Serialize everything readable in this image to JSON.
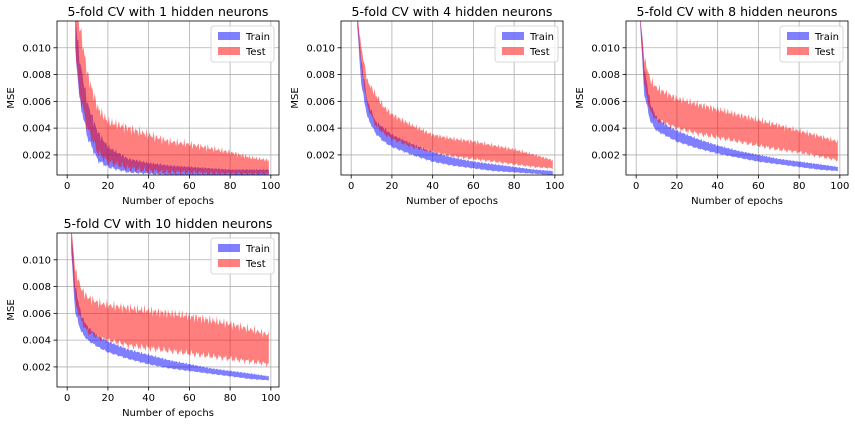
{
  "figure": {
    "background": "#ffffff",
    "train_color": "#0000ff",
    "test_color": "#ff0000",
    "band_opacity": 0.5
  },
  "chart_data": [
    {
      "type": "area",
      "title": "5-fold CV with 1 hidden neurons",
      "xlabel": "Number of epochs",
      "ylabel": "MSE",
      "xlim": [
        -5,
        104
      ],
      "ylim": [
        0.0005,
        0.012
      ],
      "xticks": [
        "0",
        "20",
        "40",
        "60",
        "80",
        "100"
      ],
      "yticks": [
        "0.002",
        "0.004",
        "0.006",
        "0.008",
        "0.010"
      ],
      "grid": true,
      "legend": "top-right",
      "legend_entries": [
        "Train",
        "Test"
      ],
      "series": [
        {
          "name": "Train",
          "x": [
            4,
            6,
            10,
            15,
            20,
            30,
            40,
            50,
            60,
            70,
            80,
            90,
            99
          ],
          "lower": [
            0.0099,
            0.0062,
            0.0033,
            0.0016,
            0.0011,
            0.0007,
            0.0006,
            0.0005,
            0.0005,
            0.0005,
            0.0005,
            0.0005,
            0.0005
          ],
          "upper": [
            0.0125,
            0.0092,
            0.0058,
            0.0037,
            0.0026,
            0.0017,
            0.0014,
            0.0012,
            0.0011,
            0.001,
            0.0009,
            0.0009,
            0.0009
          ]
        },
        {
          "name": "Test",
          "x": [
            4,
            6,
            10,
            15,
            20,
            30,
            40,
            50,
            60,
            70,
            80,
            90,
            99
          ],
          "lower": [
            0.01,
            0.0066,
            0.004,
            0.0022,
            0.0015,
            0.001,
            0.0008,
            0.0007,
            0.0007,
            0.0006,
            0.0006,
            0.0006,
            0.0006
          ],
          "upper": [
            0.0125,
            0.0118,
            0.008,
            0.0055,
            0.0045,
            0.004,
            0.0035,
            0.003,
            0.0028,
            0.0025,
            0.0022,
            0.0018,
            0.0016
          ]
        }
      ]
    },
    {
      "type": "area",
      "title": "5-fold CV with 4 hidden neurons",
      "xlabel": "Number of epochs",
      "ylabel": "MSE",
      "xlim": [
        -5,
        104
      ],
      "ylim": [
        0.0005,
        0.012
      ],
      "xticks": [
        "0",
        "20",
        "40",
        "60",
        "80",
        "100"
      ],
      "yticks": [
        "0.002",
        "0.004",
        "0.006",
        "0.008",
        "0.010"
      ],
      "grid": true,
      "legend": "top-right",
      "legend_entries": [
        "Train",
        "Test"
      ],
      "series": [
        {
          "name": "Train",
          "x": [
            3,
            5,
            8,
            12,
            16,
            20,
            30,
            40,
            50,
            60,
            70,
            80,
            90,
            99
          ],
          "lower": [
            0.0115,
            0.0072,
            0.0048,
            0.0036,
            0.003,
            0.0026,
            0.002,
            0.0015,
            0.0012,
            0.001,
            0.0008,
            0.0007,
            0.0006,
            0.0005
          ],
          "upper": [
            0.0125,
            0.009,
            0.006,
            0.0045,
            0.004,
            0.0035,
            0.0028,
            0.0022,
            0.0018,
            0.0015,
            0.0013,
            0.0011,
            0.0009,
            0.0008
          ]
        },
        {
          "name": "Test",
          "x": [
            3,
            5,
            8,
            12,
            16,
            20,
            30,
            40,
            50,
            60,
            70,
            80,
            90,
            99
          ],
          "lower": [
            0.0118,
            0.0085,
            0.0056,
            0.0042,
            0.0036,
            0.0032,
            0.0026,
            0.0022,
            0.0019,
            0.0017,
            0.0015,
            0.0013,
            0.0011,
            0.001
          ],
          "upper": [
            0.0125,
            0.01,
            0.0075,
            0.0065,
            0.0056,
            0.005,
            0.0042,
            0.0035,
            0.0032,
            0.003,
            0.0027,
            0.0024,
            0.002,
            0.0016
          ]
        }
      ]
    },
    {
      "type": "area",
      "title": "5-fold CV with 8 hidden neurons",
      "xlabel": "Number of epochs",
      "ylabel": "MSE",
      "xlim": [
        -5,
        104
      ],
      "ylim": [
        0.0005,
        0.012
      ],
      "xticks": [
        "0",
        "20",
        "40",
        "60",
        "80",
        "100"
      ],
      "yticks": [
        "0.002",
        "0.004",
        "0.006",
        "0.008",
        "0.010"
      ],
      "grid": true,
      "legend": "top-right",
      "legend_entries": [
        "Train",
        "Test"
      ],
      "series": [
        {
          "name": "Train",
          "x": [
            2,
            4,
            7,
            10,
            15,
            20,
            30,
            40,
            50,
            60,
            70,
            80,
            90,
            99
          ],
          "lower": [
            0.0115,
            0.0065,
            0.0045,
            0.0038,
            0.0034,
            0.003,
            0.0025,
            0.0021,
            0.0018,
            0.0015,
            0.0013,
            0.0011,
            0.0009,
            0.0008
          ],
          "upper": [
            0.0125,
            0.0085,
            0.0058,
            0.0048,
            0.0042,
            0.0038,
            0.0032,
            0.0027,
            0.0023,
            0.002,
            0.0017,
            0.0015,
            0.0013,
            0.0011
          ]
        },
        {
          "name": "Test",
          "x": [
            2,
            4,
            7,
            10,
            15,
            20,
            30,
            40,
            50,
            60,
            70,
            80,
            90,
            99
          ],
          "lower": [
            0.0118,
            0.0072,
            0.0052,
            0.0046,
            0.0043,
            0.004,
            0.0036,
            0.0033,
            0.003,
            0.0027,
            0.0024,
            0.0022,
            0.0019,
            0.0016
          ],
          "upper": [
            0.0125,
            0.0092,
            0.0076,
            0.007,
            0.0066,
            0.0062,
            0.0058,
            0.0054,
            0.005,
            0.0046,
            0.0042,
            0.0038,
            0.0034,
            0.003
          ]
        }
      ]
    },
    {
      "type": "area",
      "title": "5-fold CV with 10 hidden neurons",
      "xlabel": "Number of epochs",
      "ylabel": "MSE",
      "xlim": [
        -5,
        104
      ],
      "ylim": [
        0.0005,
        0.012
      ],
      "xticks": [
        "0",
        "20",
        "40",
        "60",
        "80",
        "100"
      ],
      "yticks": [
        "0.002",
        "0.004",
        "0.006",
        "0.008",
        "0.010"
      ],
      "grid": true,
      "legend": "top-right",
      "legend_entries": [
        "Train",
        "Test"
      ],
      "series": [
        {
          "name": "Train",
          "x": [
            2,
            4,
            7,
            10,
            15,
            20,
            30,
            40,
            50,
            60,
            70,
            80,
            90,
            99
          ],
          "lower": [
            0.0105,
            0.006,
            0.0046,
            0.004,
            0.0035,
            0.0031,
            0.0026,
            0.0022,
            0.0019,
            0.0017,
            0.0015,
            0.0013,
            0.0011,
            0.001
          ],
          "upper": [
            0.0125,
            0.008,
            0.0058,
            0.005,
            0.0043,
            0.0039,
            0.0033,
            0.0029,
            0.0025,
            0.0022,
            0.0019,
            0.0017,
            0.0015,
            0.0013
          ]
        },
        {
          "name": "Test",
          "x": [
            2,
            4,
            7,
            10,
            15,
            20,
            30,
            40,
            50,
            60,
            70,
            80,
            90,
            99
          ],
          "lower": [
            0.011,
            0.0068,
            0.0054,
            0.0046,
            0.0042,
            0.004,
            0.0036,
            0.0034,
            0.0032,
            0.003,
            0.0028,
            0.0026,
            0.0024,
            0.0022
          ],
          "upper": [
            0.0125,
            0.0092,
            0.0078,
            0.0072,
            0.0068,
            0.0066,
            0.0064,
            0.0062,
            0.006,
            0.0058,
            0.0055,
            0.0052,
            0.0048,
            0.0044
          ]
        }
      ]
    }
  ]
}
